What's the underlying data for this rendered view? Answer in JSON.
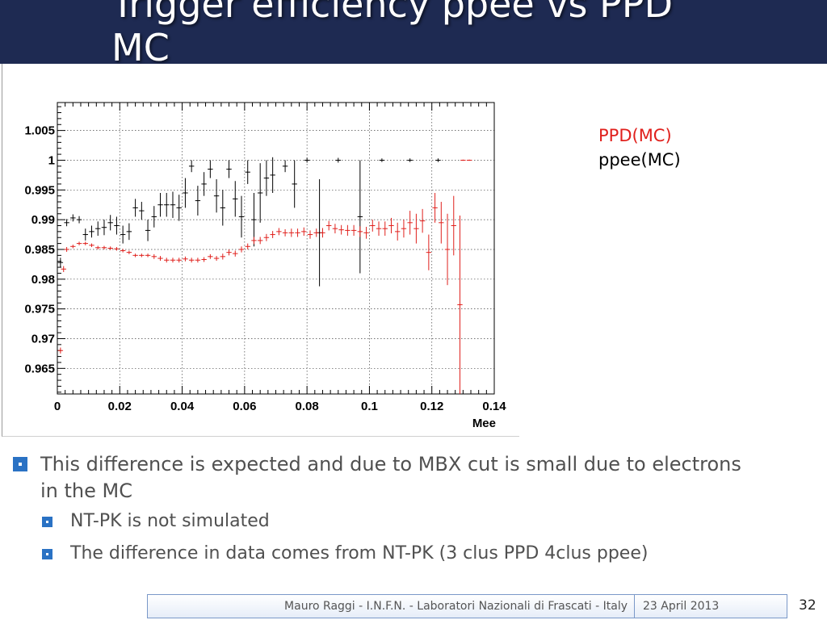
{
  "slide": {
    "title": "Trigger efficiency ppee vs PPD",
    "title_line2": "MC"
  },
  "legend": {
    "ppd": "PPD(MC)",
    "ppee": "ppee(MC)"
  },
  "bullets": {
    "main": "This difference is expected and due to MBX cut is small due to electrons in the MC",
    "sub": [
      "NT-PK is not simulated",
      "The difference in data comes from NT-PK (3 clus PPD 4clus ppee)"
    ]
  },
  "footer": {
    "author": "Mauro Raggi - I.N.F.N. - Laboratori Nazionali di Frascati - Italy",
    "date": "23 April 2013",
    "page": "32"
  },
  "colors": {
    "title_bar": "#1e2a52",
    "ppd_series": "#e0201c",
    "ppee_series": "#000000",
    "bullet_marker": "#2a72c4"
  },
  "chart_data": {
    "type": "scatter",
    "xlabel": "Mee",
    "ylabel": "",
    "xlim": [
      0,
      0.14
    ],
    "ylim": [
      0.9607,
      1.0097
    ],
    "grid": true,
    "x_ticks": [
      "0",
      "0.02",
      "0.04",
      "0.06",
      "0.08",
      "0.1",
      "0.12",
      "0.14"
    ],
    "y_ticks": [
      "0.965",
      "0.97",
      "0.975",
      "0.98",
      "0.985",
      "0.99",
      "0.995",
      "1",
      "1.005"
    ],
    "series": [
      {
        "name": "ppee(MC)",
        "color": "#000000",
        "points": [
          [
            0.001,
            0.9828,
            0.0008
          ],
          [
            0.003,
            0.9895,
            0.0006
          ],
          [
            0.005,
            0.9903,
            0.0006
          ],
          [
            0.007,
            0.99,
            0.0006
          ],
          [
            0.009,
            0.9875,
            0.001
          ],
          [
            0.011,
            0.988,
            0.001
          ],
          [
            0.013,
            0.9885,
            0.0012
          ],
          [
            0.015,
            0.9887,
            0.0013
          ],
          [
            0.017,
            0.9895,
            0.0013
          ],
          [
            0.019,
            0.989,
            0.0015
          ],
          [
            0.021,
            0.9875,
            0.0015
          ],
          [
            0.023,
            0.988,
            0.0014
          ],
          [
            0.025,
            0.992,
            0.0015
          ],
          [
            0.027,
            0.9915,
            0.0015
          ],
          [
            0.029,
            0.9882,
            0.0018
          ],
          [
            0.031,
            0.9905,
            0.0018
          ],
          [
            0.033,
            0.9925,
            0.002
          ],
          [
            0.035,
            0.9925,
            0.002
          ],
          [
            0.037,
            0.9925,
            0.0022
          ],
          [
            0.039,
            0.992,
            0.0022
          ],
          [
            0.041,
            0.9945,
            0.0025
          ],
          [
            0.043,
            0.999,
            0.001
          ],
          [
            0.045,
            0.9932,
            0.0025
          ],
          [
            0.047,
            0.996,
            0.002
          ],
          [
            0.049,
            0.9985,
            0.0015
          ],
          [
            0.051,
            0.994,
            0.0028
          ],
          [
            0.053,
            0.992,
            0.003
          ],
          [
            0.055,
            0.9985,
            0.0015
          ],
          [
            0.057,
            0.9935,
            0.003
          ],
          [
            0.059,
            0.9905,
            0.0035
          ],
          [
            0.061,
            0.998,
            0.002
          ],
          [
            0.063,
            0.99,
            0.0045
          ],
          [
            0.065,
            0.9945,
            0.005
          ],
          [
            0.067,
            0.997,
            0.003
          ],
          [
            0.069,
            0.9975,
            0.003
          ],
          [
            0.073,
            0.999,
            0.001
          ],
          [
            0.076,
            0.996,
            0.004
          ],
          [
            0.08,
            1.0,
            0.0004
          ],
          [
            0.084,
            0.9878,
            0.009
          ],
          [
            0.09,
            1.0,
            0.0004
          ],
          [
            0.097,
            0.9905,
            0.0095
          ],
          [
            0.104,
            1.0,
            0.0003
          ],
          [
            0.113,
            1.0,
            0.0003
          ],
          [
            0.122,
            1.0,
            0.0003
          ]
        ]
      },
      {
        "name": "PPD(MC)",
        "color": "#e0201c",
        "points": [
          [
            0.001,
            0.968,
            0.0005
          ],
          [
            0.002,
            0.9817,
            0.0005
          ],
          [
            0.003,
            0.985,
            0.0004
          ],
          [
            0.005,
            0.9855,
            0.0003
          ],
          [
            0.007,
            0.986,
            0.0003
          ],
          [
            0.009,
            0.986,
            0.0003
          ],
          [
            0.011,
            0.9857,
            0.0003
          ],
          [
            0.013,
            0.9853,
            0.0003
          ],
          [
            0.015,
            0.9853,
            0.0003
          ],
          [
            0.017,
            0.9852,
            0.0003
          ],
          [
            0.019,
            0.9851,
            0.0003
          ],
          [
            0.021,
            0.9848,
            0.0003
          ],
          [
            0.023,
            0.9845,
            0.0003
          ],
          [
            0.025,
            0.984,
            0.0003
          ],
          [
            0.027,
            0.984,
            0.0003
          ],
          [
            0.029,
            0.984,
            0.0003
          ],
          [
            0.031,
            0.9838,
            0.0004
          ],
          [
            0.033,
            0.9835,
            0.0004
          ],
          [
            0.035,
            0.9832,
            0.0004
          ],
          [
            0.037,
            0.9832,
            0.0004
          ],
          [
            0.039,
            0.9832,
            0.0004
          ],
          [
            0.041,
            0.9834,
            0.0004
          ],
          [
            0.043,
            0.9832,
            0.0004
          ],
          [
            0.045,
            0.9832,
            0.0004
          ],
          [
            0.047,
            0.9833,
            0.0004
          ],
          [
            0.049,
            0.9838,
            0.0004
          ],
          [
            0.051,
            0.9835,
            0.0004
          ],
          [
            0.053,
            0.9838,
            0.0005
          ],
          [
            0.055,
            0.9845,
            0.0005
          ],
          [
            0.057,
            0.9843,
            0.0005
          ],
          [
            0.059,
            0.985,
            0.0005
          ],
          [
            0.061,
            0.9855,
            0.0005
          ],
          [
            0.063,
            0.9865,
            0.0006
          ],
          [
            0.065,
            0.9865,
            0.0006
          ],
          [
            0.067,
            0.987,
            0.0006
          ],
          [
            0.069,
            0.9875,
            0.0006
          ],
          [
            0.071,
            0.988,
            0.0006
          ],
          [
            0.073,
            0.9878,
            0.0006
          ],
          [
            0.075,
            0.9878,
            0.0007
          ],
          [
            0.077,
            0.9878,
            0.0007
          ],
          [
            0.079,
            0.988,
            0.0007
          ],
          [
            0.081,
            0.9875,
            0.0007
          ],
          [
            0.083,
            0.9878,
            0.0007
          ],
          [
            0.085,
            0.9878,
            0.0008
          ],
          [
            0.087,
            0.989,
            0.0008
          ],
          [
            0.089,
            0.9885,
            0.0008
          ],
          [
            0.091,
            0.9883,
            0.0008
          ],
          [
            0.093,
            0.9882,
            0.0009
          ],
          [
            0.095,
            0.9882,
            0.0009
          ],
          [
            0.097,
            0.988,
            0.0009
          ],
          [
            0.099,
            0.9878,
            0.001
          ],
          [
            0.101,
            0.989,
            0.001
          ],
          [
            0.103,
            0.9885,
            0.0012
          ],
          [
            0.105,
            0.9885,
            0.0012
          ],
          [
            0.107,
            0.989,
            0.0013
          ],
          [
            0.109,
            0.988,
            0.0015
          ],
          [
            0.111,
            0.9885,
            0.0015
          ],
          [
            0.113,
            0.9895,
            0.002
          ],
          [
            0.115,
            0.9885,
            0.0025
          ],
          [
            0.117,
            0.9898,
            0.002
          ],
          [
            0.119,
            0.9845,
            0.003
          ],
          [
            0.121,
            0.992,
            0.0025
          ],
          [
            0.123,
            0.9895,
            0.0035
          ],
          [
            0.125,
            0.985,
            0.006
          ],
          [
            0.127,
            0.989,
            0.005
          ],
          [
            0.129,
            0.9757,
            0.015
          ],
          [
            0.13,
            1.0,
            0.0001
          ],
          [
            0.132,
            1.0,
            0.0001
          ]
        ]
      }
    ]
  }
}
